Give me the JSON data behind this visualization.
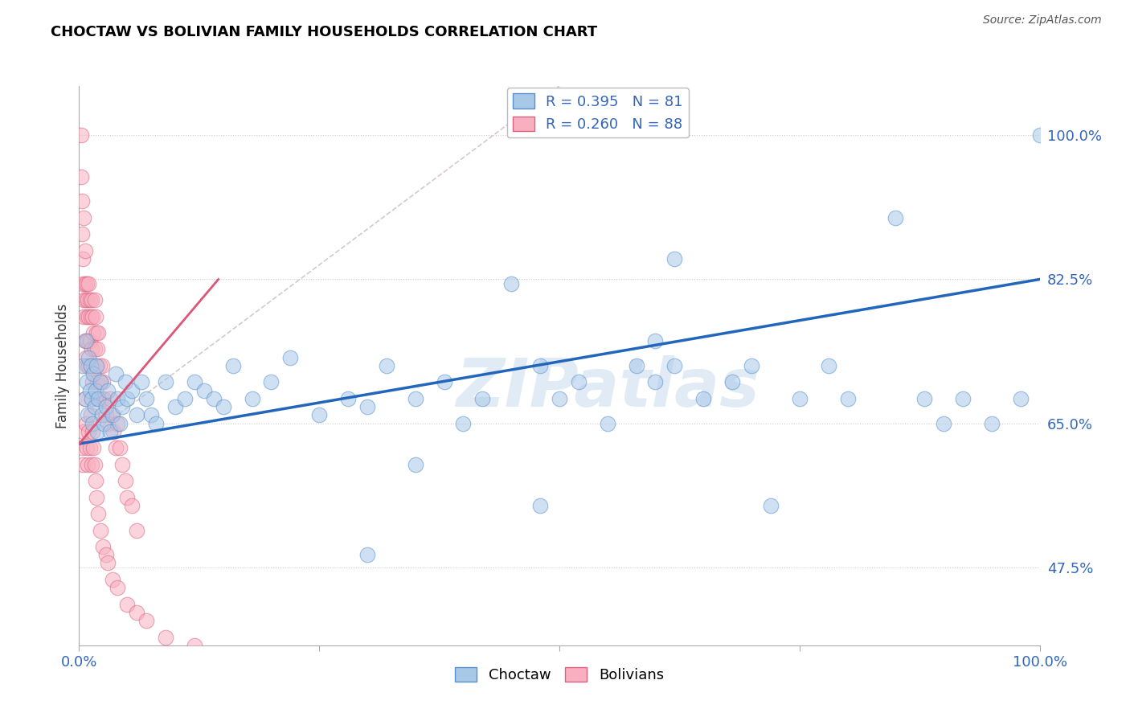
{
  "title": "CHOCTAW VS BOLIVIAN FAMILY HOUSEHOLDS CORRELATION CHART",
  "source_text": "Source: ZipAtlas.com",
  "ylabel": "Family Households",
  "watermark": "ZIPatlas",
  "xlim": [
    0.0,
    1.0
  ],
  "ylim": [
    0.38,
    1.06
  ],
  "yticks": [
    0.475,
    0.65,
    0.825,
    1.0
  ],
  "ytick_labels": [
    "47.5%",
    "65.0%",
    "82.5%",
    "100.0%"
  ],
  "xtick_labels": [
    "0.0%",
    "100.0%"
  ],
  "choctaw_color": "#a8c8e8",
  "choctaw_edge": "#5590cc",
  "bolivian_color": "#f8b0c0",
  "bolivian_edge": "#dd6080",
  "blue_line_color": "#2266bb",
  "pink_line_color": "#dd5577",
  "ref_line_color": "#ccbbbb",
  "blue_line_x": [
    0.0,
    1.0
  ],
  "blue_line_y": [
    0.625,
    0.825
  ],
  "pink_line_x": [
    0.0,
    0.145
  ],
  "pink_line_y": [
    0.625,
    0.825
  ],
  "ref_line_x": [
    0.0,
    0.5
  ],
  "ref_line_y": [
    0.625,
    1.06
  ],
  "choctaw_x": [
    0.004,
    0.006,
    0.007,
    0.008,
    0.009,
    0.01,
    0.011,
    0.012,
    0.013,
    0.014,
    0.015,
    0.016,
    0.017,
    0.018,
    0.019,
    0.02,
    0.022,
    0.024,
    0.026,
    0.028,
    0.03,
    0.032,
    0.035,
    0.038,
    0.04,
    0.042,
    0.045,
    0.048,
    0.05,
    0.055,
    0.06,
    0.065,
    0.07,
    0.075,
    0.08,
    0.09,
    0.1,
    0.11,
    0.12,
    0.13,
    0.14,
    0.15,
    0.16,
    0.18,
    0.2,
    0.22,
    0.25,
    0.28,
    0.3,
    0.32,
    0.35,
    0.38,
    0.4,
    0.42,
    0.45,
    0.48,
    0.5,
    0.52,
    0.55,
    0.58,
    0.6,
    0.62,
    0.65,
    0.68,
    0.7,
    0.72,
    0.75,
    0.78,
    0.8,
    0.85,
    0.88,
    0.9,
    0.92,
    0.95,
    0.98,
    1.0,
    0.48,
    0.3,
    0.35,
    0.6,
    0.62
  ],
  "choctaw_y": [
    0.72,
    0.68,
    0.75,
    0.7,
    0.66,
    0.73,
    0.69,
    0.72,
    0.68,
    0.65,
    0.71,
    0.67,
    0.69,
    0.72,
    0.64,
    0.68,
    0.7,
    0.66,
    0.65,
    0.67,
    0.69,
    0.64,
    0.66,
    0.71,
    0.68,
    0.65,
    0.67,
    0.7,
    0.68,
    0.69,
    0.66,
    0.7,
    0.68,
    0.66,
    0.65,
    0.7,
    0.67,
    0.68,
    0.7,
    0.69,
    0.68,
    0.67,
    0.72,
    0.68,
    0.7,
    0.73,
    0.66,
    0.68,
    0.67,
    0.72,
    0.68,
    0.7,
    0.65,
    0.68,
    0.82,
    0.72,
    0.68,
    0.7,
    0.65,
    0.72,
    0.7,
    0.85,
    0.68,
    0.7,
    0.72,
    0.55,
    0.68,
    0.72,
    0.68,
    0.9,
    0.68,
    0.65,
    0.68,
    0.65,
    0.68,
    1.0,
    0.55,
    0.49,
    0.6,
    0.75,
    0.72
  ],
  "bolivian_x": [
    0.002,
    0.002,
    0.003,
    0.003,
    0.004,
    0.004,
    0.005,
    0.005,
    0.005,
    0.006,
    0.006,
    0.006,
    0.007,
    0.007,
    0.008,
    0.008,
    0.008,
    0.009,
    0.009,
    0.01,
    0.01,
    0.01,
    0.011,
    0.011,
    0.012,
    0.012,
    0.013,
    0.013,
    0.014,
    0.014,
    0.015,
    0.015,
    0.016,
    0.016,
    0.017,
    0.017,
    0.018,
    0.018,
    0.019,
    0.019,
    0.02,
    0.021,
    0.022,
    0.023,
    0.024,
    0.025,
    0.026,
    0.028,
    0.03,
    0.032,
    0.034,
    0.036,
    0.038,
    0.04,
    0.042,
    0.045,
    0.048,
    0.05,
    0.055,
    0.06,
    0.003,
    0.004,
    0.005,
    0.006,
    0.007,
    0.008,
    0.009,
    0.01,
    0.011,
    0.012,
    0.013,
    0.014,
    0.015,
    0.016,
    0.017,
    0.018,
    0.02,
    0.022,
    0.025,
    0.028,
    0.03,
    0.035,
    0.04,
    0.05,
    0.06,
    0.07,
    0.09,
    0.12
  ],
  "bolivian_y": [
    0.95,
    1.0,
    0.92,
    0.88,
    0.85,
    0.82,
    0.9,
    0.8,
    0.78,
    0.82,
    0.86,
    0.75,
    0.8,
    0.73,
    0.82,
    0.78,
    0.72,
    0.8,
    0.75,
    0.82,
    0.78,
    0.72,
    0.8,
    0.75,
    0.78,
    0.72,
    0.8,
    0.74,
    0.78,
    0.7,
    0.76,
    0.72,
    0.8,
    0.74,
    0.78,
    0.72,
    0.76,
    0.68,
    0.74,
    0.7,
    0.76,
    0.72,
    0.7,
    0.68,
    0.72,
    0.7,
    0.68,
    0.66,
    0.65,
    0.68,
    0.66,
    0.64,
    0.62,
    0.65,
    0.62,
    0.6,
    0.58,
    0.56,
    0.55,
    0.52,
    0.62,
    0.6,
    0.64,
    0.68,
    0.65,
    0.62,
    0.6,
    0.64,
    0.62,
    0.66,
    0.6,
    0.64,
    0.62,
    0.6,
    0.58,
    0.56,
    0.54,
    0.52,
    0.5,
    0.49,
    0.48,
    0.46,
    0.45,
    0.43,
    0.42,
    0.41,
    0.39,
    0.38
  ]
}
